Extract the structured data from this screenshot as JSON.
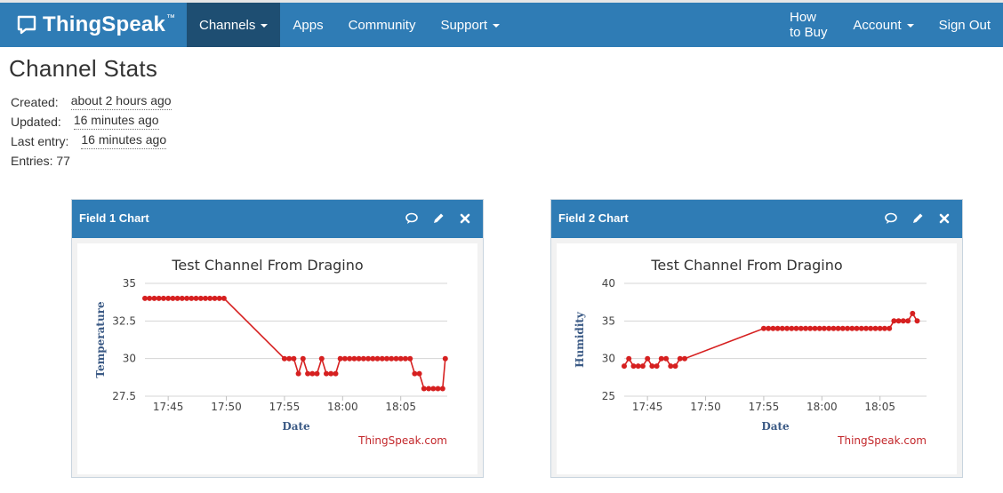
{
  "app": {
    "brand": "ThingSpeak",
    "trademark": "™"
  },
  "nav": {
    "left": [
      {
        "label": "Channels",
        "dropdown": true,
        "active": true
      },
      {
        "label": "Apps",
        "dropdown": false
      },
      {
        "label": "Community",
        "dropdown": false
      },
      {
        "label": "Support",
        "dropdown": true
      }
    ],
    "right": [
      {
        "label": "How to Buy",
        "dropdown": false
      },
      {
        "label": "Account",
        "dropdown": true
      },
      {
        "label": "Sign Out",
        "dropdown": false
      }
    ]
  },
  "page": {
    "title": "Channel Stats"
  },
  "stats": {
    "created_label": "Created:",
    "created_value": "about 2 hours ago",
    "updated_label": "Updated:",
    "updated_value": "16 minutes ago",
    "last_entry_label": "Last entry:",
    "last_entry_value": "16 minutes ago",
    "entries_text": "Entries: 77"
  },
  "panels": [
    {
      "title": "Field 1 Chart",
      "icons": [
        "comment-icon",
        "pencil-icon",
        "close-icon"
      ]
    },
    {
      "title": "Field 2 Chart",
      "icons": [
        "comment-icon",
        "pencil-icon",
        "close-icon"
      ]
    }
  ],
  "colors": {
    "nav_bg": "#2f7cb5",
    "nav_active": "#1e4e72",
    "series": "#d62020",
    "axis_title": "#3b5a85",
    "credit": "#c3272b"
  },
  "chart_data": [
    {
      "type": "line",
      "title": "Test Channel From Dragino",
      "xlabel": "Date",
      "ylabel": "Temperature",
      "credit": "ThingSpeak.com",
      "ylim": [
        27.5,
        35
      ],
      "yticks": [
        27.5,
        30,
        32.5,
        35
      ],
      "ytick_labels": [
        "27.5",
        "30",
        "32.5",
        "35"
      ],
      "xlim_minutes": [
        "17:43",
        "18:09"
      ],
      "xticks": [
        "17:45",
        "17:50",
        "17:55",
        "18:00",
        "18:05"
      ],
      "grid": true,
      "series": [
        {
          "points": [
            [
              "17:43:00",
              34
            ],
            [
              "17:43:24",
              34
            ],
            [
              "17:43:48",
              34
            ],
            [
              "17:44:12",
              34
            ],
            [
              "17:44:36",
              34
            ],
            [
              "17:45:00",
              34
            ],
            [
              "17:45:24",
              34
            ],
            [
              "17:45:48",
              34
            ],
            [
              "17:46:12",
              34
            ],
            [
              "17:46:36",
              34
            ],
            [
              "17:47:00",
              34
            ],
            [
              "17:47:24",
              34
            ],
            [
              "17:47:48",
              34
            ],
            [
              "17:48:12",
              34
            ],
            [
              "17:48:36",
              34
            ],
            [
              "17:49:00",
              34
            ],
            [
              "17:49:24",
              34
            ],
            [
              "17:49:48",
              34
            ],
            [
              "17:55:00",
              30
            ],
            [
              "17:55:24",
              30
            ],
            [
              "17:55:48",
              30
            ],
            [
              "17:56:12",
              29
            ],
            [
              "17:56:36",
              30
            ],
            [
              "17:57:00",
              29
            ],
            [
              "17:57:24",
              29
            ],
            [
              "17:57:48",
              29
            ],
            [
              "17:58:12",
              30
            ],
            [
              "17:58:36",
              29
            ],
            [
              "17:59:00",
              29
            ],
            [
              "17:59:24",
              29
            ],
            [
              "17:59:48",
              30
            ],
            [
              "18:00:12",
              30
            ],
            [
              "18:00:36",
              30
            ],
            [
              "18:01:00",
              30
            ],
            [
              "18:01:24",
              30
            ],
            [
              "18:01:48",
              30
            ],
            [
              "18:02:12",
              30
            ],
            [
              "18:02:36",
              30
            ],
            [
              "18:03:00",
              30
            ],
            [
              "18:03:24",
              30
            ],
            [
              "18:03:48",
              30
            ],
            [
              "18:04:12",
              30
            ],
            [
              "18:04:36",
              30
            ],
            [
              "18:05:00",
              30
            ],
            [
              "18:05:24",
              30
            ],
            [
              "18:05:48",
              30
            ],
            [
              "18:06:12",
              29
            ],
            [
              "18:06:36",
              29
            ],
            [
              "18:07:00",
              28
            ],
            [
              "18:07:24",
              28
            ],
            [
              "18:07:48",
              28
            ],
            [
              "18:08:12",
              28
            ],
            [
              "18:08:36",
              28
            ],
            [
              "18:08:50",
              30
            ]
          ]
        }
      ]
    },
    {
      "type": "line",
      "title": "Test Channel From Dragino",
      "xlabel": "Date",
      "ylabel": "Humidity",
      "credit": "ThingSpeak.com",
      "ylim": [
        25,
        40
      ],
      "yticks": [
        25,
        30,
        35,
        40
      ],
      "ytick_labels": [
        "25",
        "30",
        "35",
        "40"
      ],
      "xlim_minutes": [
        "17:43",
        "18:09"
      ],
      "xticks": [
        "17:45",
        "17:50",
        "17:55",
        "18:00",
        "18:05"
      ],
      "grid": true,
      "series": [
        {
          "points": [
            [
              "17:43:00",
              29
            ],
            [
              "17:43:24",
              30
            ],
            [
              "17:43:48",
              29
            ],
            [
              "17:44:12",
              29
            ],
            [
              "17:44:36",
              29
            ],
            [
              "17:45:00",
              30
            ],
            [
              "17:45:24",
              29
            ],
            [
              "17:45:48",
              29
            ],
            [
              "17:46:12",
              30
            ],
            [
              "17:46:36",
              30
            ],
            [
              "17:47:00",
              29
            ],
            [
              "17:47:24",
              29
            ],
            [
              "17:47:48",
              30
            ],
            [
              "17:48:12",
              30
            ],
            [
              "17:55:00",
              34
            ],
            [
              "17:55:24",
              34
            ],
            [
              "17:55:48",
              34
            ],
            [
              "17:56:12",
              34
            ],
            [
              "17:56:36",
              34
            ],
            [
              "17:57:00",
              34
            ],
            [
              "17:57:24",
              34
            ],
            [
              "17:57:48",
              34
            ],
            [
              "17:58:12",
              34
            ],
            [
              "17:58:36",
              34
            ],
            [
              "17:59:00",
              34
            ],
            [
              "17:59:24",
              34
            ],
            [
              "17:59:48",
              34
            ],
            [
              "18:00:12",
              34
            ],
            [
              "18:00:36",
              34
            ],
            [
              "18:01:00",
              34
            ],
            [
              "18:01:24",
              34
            ],
            [
              "18:01:48",
              34
            ],
            [
              "18:02:12",
              34
            ],
            [
              "18:02:36",
              34
            ],
            [
              "18:03:00",
              34
            ],
            [
              "18:03:24",
              34
            ],
            [
              "18:03:48",
              34
            ],
            [
              "18:04:12",
              34
            ],
            [
              "18:04:36",
              34
            ],
            [
              "18:05:00",
              34
            ],
            [
              "18:05:24",
              34
            ],
            [
              "18:05:48",
              34
            ],
            [
              "18:06:12",
              35
            ],
            [
              "18:06:36",
              35
            ],
            [
              "18:07:00",
              35
            ],
            [
              "18:07:24",
              35
            ],
            [
              "18:07:48",
              36
            ],
            [
              "18:08:12",
              35
            ]
          ]
        }
      ]
    }
  ]
}
